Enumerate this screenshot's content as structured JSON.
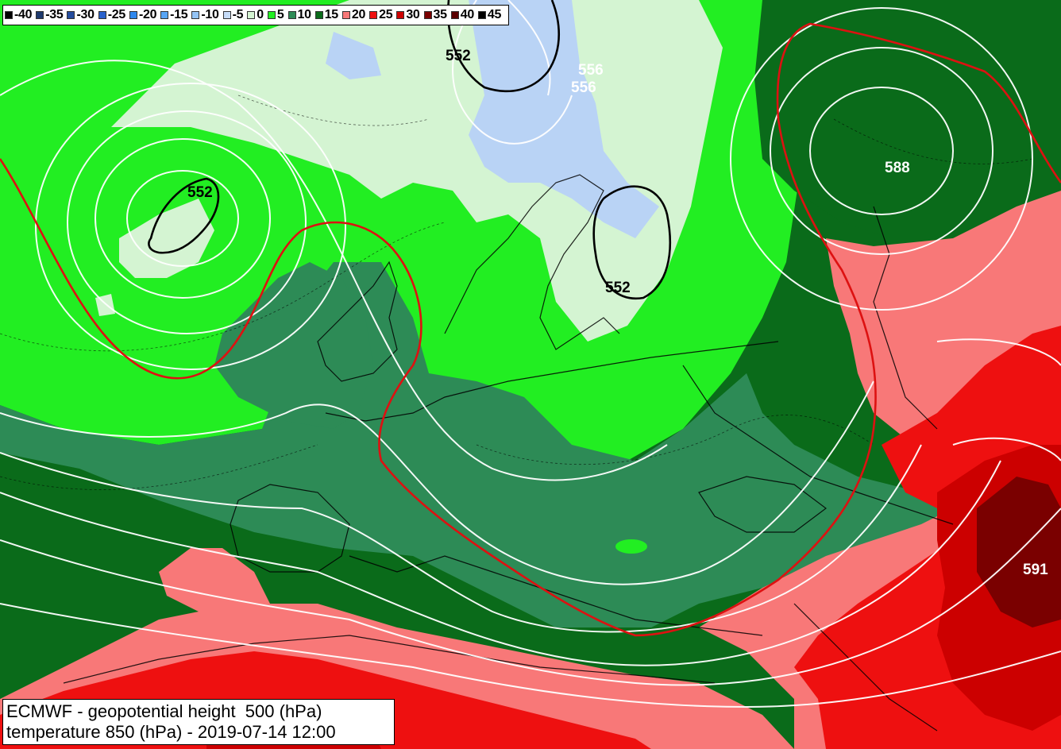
{
  "legend": [
    {
      "label": "-40",
      "color": "#000000"
    },
    {
      "label": "-35",
      "color": "#1e3a6e"
    },
    {
      "label": "-30",
      "color": "#254d9e"
    },
    {
      "label": "-25",
      "color": "#2a62cc"
    },
    {
      "label": "-20",
      "color": "#2f88ee"
    },
    {
      "label": "-15",
      "color": "#57a5f5"
    },
    {
      "label": "-10",
      "color": "#94c4f5"
    },
    {
      "label": "-5",
      "color": "#c6dcf8"
    },
    {
      "label": "0",
      "color": "#d4f4d2"
    },
    {
      "label": "5",
      "color": "#22ee22"
    },
    {
      "label": "10",
      "color": "#2d8b56"
    },
    {
      "label": "15",
      "color": "#0a6b1a"
    },
    {
      "label": "20",
      "color": "#f87878"
    },
    {
      "label": "25",
      "color": "#ee1010"
    },
    {
      "label": "30",
      "color": "#cc0000"
    },
    {
      "label": "35",
      "color": "#7a0000"
    },
    {
      "label": "40",
      "color": "#5a0000"
    },
    {
      "label": "45",
      "color": "#000000"
    }
  ],
  "caption": {
    "line1": "ECMWF - geopotential height  500 (hPa)",
    "line2": "temperature 850 (hPa) - 2019-07-14 12:00"
  },
  "contour_labels": {
    "low_north": "552",
    "low_atlantic": "552",
    "low_russia": "552",
    "white_a": "556",
    "white_b": "556",
    "high_east": "588",
    "high_southeast": "591"
  },
  "colors": {
    "contour_white": "#ffffff",
    "contour_red": "#dd1111",
    "contour_black": "#000000",
    "background": "#0a6b1a"
  }
}
